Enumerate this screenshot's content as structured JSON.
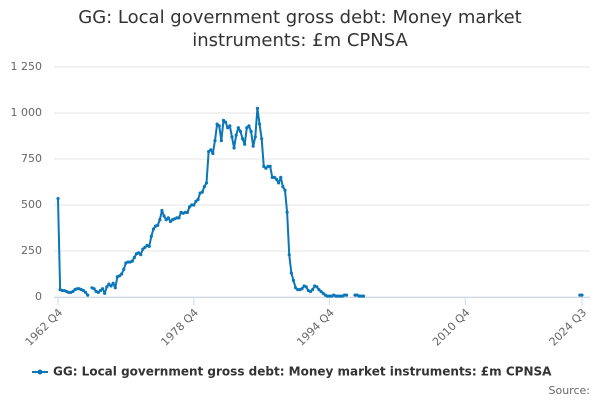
{
  "chart_data": {
    "type": "line",
    "title": "GG: Local government gross debt: Money market instruments: £m CPNSA",
    "source": "Source:",
    "categories": [
      "1962 Q4",
      null,
      null,
      null,
      null,
      null,
      null,
      null,
      null,
      null,
      null,
      null,
      null,
      null,
      null,
      null,
      null,
      null,
      null,
      null,
      null,
      null,
      null,
      null,
      null,
      null,
      null,
      null,
      null,
      null,
      null,
      null,
      null,
      null,
      null,
      null,
      null,
      null,
      null,
      null,
      null,
      null,
      null,
      null,
      null,
      null,
      null,
      null,
      null,
      null,
      null,
      null,
      null,
      null,
      null,
      null,
      null,
      null,
      null,
      null,
      null,
      null,
      null,
      null,
      "1978 Q4",
      null,
      null,
      null,
      null,
      null,
      null,
      null,
      null,
      null,
      null,
      null,
      null,
      null,
      null,
      null,
      null,
      null,
      null,
      null,
      null,
      null,
      null,
      null,
      null,
      null,
      null,
      null,
      null,
      null,
      null,
      null,
      null,
      null,
      null,
      null,
      null,
      null,
      null,
      null,
      null,
      null,
      null,
      null,
      null,
      null,
      null,
      null,
      null,
      null,
      null,
      null,
      null,
      null,
      null,
      null,
      null,
      null,
      null,
      null,
      null,
      null,
      null,
      null,
      "1994 Q4",
      null,
      null,
      null,
      null,
      null,
      null,
      null,
      null,
      null,
      null,
      null,
      null,
      null,
      null,
      null,
      null,
      null,
      null,
      null,
      null,
      null,
      null,
      null,
      null,
      null,
      null,
      null,
      null,
      null,
      null,
      null,
      null,
      null,
      null,
      null,
      null,
      null,
      null,
      null,
      null,
      null,
      null,
      null,
      null,
      null,
      null,
      null,
      null,
      null,
      null,
      null,
      null,
      null,
      null,
      null,
      null,
      null,
      null,
      null,
      null,
      null,
      null,
      null,
      "2010 Q4",
      null,
      null,
      null,
      null,
      null,
      null,
      null,
      null,
      null,
      null,
      null,
      null,
      null,
      null,
      null,
      null,
      null,
      null,
      null,
      null,
      null,
      null,
      null,
      null,
      null,
      null,
      null,
      null,
      null,
      null,
      null,
      null,
      null,
      null,
      null,
      null,
      null,
      null,
      null,
      null,
      null,
      null,
      null,
      null,
      null,
      null,
      null,
      null,
      null,
      null,
      null,
      null,
      null,
      null,
      "2024 Q3"
    ],
    "series": [
      {
        "name": "GG: Local government gross debt: Money market instruments: £m CPNSA",
        "color": "#0b76b8",
        "values": [
          535,
          40,
          35,
          35,
          30,
          25,
          25,
          30,
          40,
          45,
          45,
          40,
          35,
          25,
          10,
          null,
          50,
          45,
          30,
          25,
          35,
          45,
          20,
          55,
          70,
          60,
          75,
          50,
          110,
          115,
          125,
          150,
          185,
          190,
          190,
          195,
          215,
          235,
          240,
          230,
          260,
          270,
          280,
          275,
          330,
          370,
          385,
          390,
          420,
          470,
          440,
          420,
          430,
          410,
          420,
          425,
          430,
          430,
          460,
          455,
          460,
          460,
          490,
          500,
          500,
          520,
          530,
          565,
          570,
          600,
          620,
          790,
          800,
          780,
          850,
          940,
          930,
          850,
          960,
          950,
          920,
          930,
          870,
          810,
          880,
          920,
          900,
          860,
          830,
          920,
          930,
          900,
          820,
          870,
          1025,
          940,
          860,
          710,
          700,
          710,
          710,
          650,
          650,
          640,
          620,
          650,
          600,
          580,
          460,
          230,
          130,
          90,
          50,
          40,
          40,
          45,
          60,
          55,
          35,
          30,
          40,
          60,
          55,
          40,
          30,
          20,
          10,
          5,
          5,
          5,
          10,
          5,
          5,
          5,
          5,
          10,
          10,
          null,
          null,
          null,
          10,
          10,
          5,
          5,
          5,
          null,
          null,
          null,
          null,
          null,
          null,
          null,
          null,
          null,
          null,
          null,
          null,
          null,
          null,
          null,
          null,
          null,
          null,
          null,
          null,
          null,
          null,
          null,
          null,
          null,
          null,
          null,
          null,
          null,
          null,
          null,
          null,
          null,
          null,
          null,
          null,
          null,
          null,
          null,
          null,
          null,
          null,
          null,
          null,
          null,
          null,
          null,
          null,
          null,
          null,
          null,
          null,
          null,
          null,
          null,
          null,
          null,
          null,
          null,
          null,
          null,
          null,
          null,
          null,
          null,
          null,
          null,
          null,
          null,
          null,
          null,
          null,
          null,
          null,
          null,
          null,
          null,
          null,
          null,
          null,
          null,
          null,
          null,
          null,
          null,
          null,
          null,
          null,
          null,
          null,
          null,
          null,
          null,
          null,
          null,
          null,
          null,
          null,
          null,
          null,
          null,
          10,
          10
        ]
      }
    ],
    "ylim": [
      0,
      1250
    ],
    "yticks": [
      0,
      250,
      500,
      750,
      {
        "value": 1000,
        "label": "1 000"
      },
      {
        "value": 1250,
        "label": "1 250"
      }
    ],
    "grid": true,
    "legend": "bottom"
  }
}
